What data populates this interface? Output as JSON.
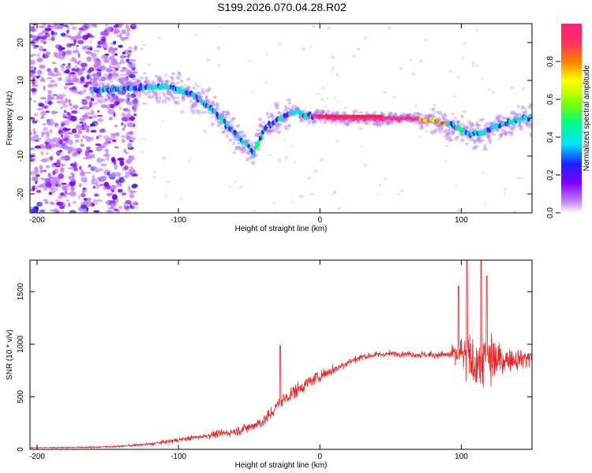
{
  "figure_title": "S199.2026.070.04.28.R02",
  "chart_data": [
    {
      "type": "heatmap",
      "id": "spectrogram",
      "title": "",
      "xlabel": "Height of straight line (km)",
      "ylabel": "Frequency (Hz)",
      "xlim": [
        -205,
        150
      ],
      "ylim": [
        -25,
        25
      ],
      "xticks": [
        -200,
        -100,
        0,
        100
      ],
      "yticks": [
        -20,
        -10,
        0,
        10,
        20
      ],
      "ridge": {
        "x": [
          -205,
          -190,
          -170,
          -150,
          -130,
          -110,
          -95,
          -85,
          -75,
          -65,
          -58,
          -52,
          -47,
          -42,
          -38,
          -33,
          -28,
          -22,
          -17,
          -13,
          -8,
          -3,
          0,
          20,
          45,
          60,
          80,
          95,
          105,
          115,
          125,
          135,
          145,
          150
        ],
        "y": [
          8,
          8,
          7.5,
          7.5,
          8,
          8.5,
          7,
          5,
          2,
          -2,
          -5,
          -7,
          -9,
          -5,
          -2,
          -1,
          0,
          1,
          2,
          1,
          0.5,
          0.5,
          0.5,
          0,
          0,
          0,
          -0.5,
          -2,
          -4,
          -4,
          -2,
          -1,
          0,
          0.5
        ]
      },
      "colorbar": {
        "label": "Normalized spectral amplitude",
        "range": [
          0.0,
          1.0
        ],
        "ticks": [
          0.0,
          0.2,
          0.4,
          0.6,
          0.8
        ],
        "tick_labels": [
          "0.0",
          "0.2",
          "0.4",
          "0.6",
          "0.8"
        ],
        "colors": [
          "#ffffff",
          "#c080ff",
          "#8000ff",
          "#2020ff",
          "#00e0ff",
          "#00ff80",
          "#80ff00",
          "#ffff00",
          "#ff8000",
          "#ff3060",
          "#ff2080"
        ]
      }
    },
    {
      "type": "line",
      "id": "snr",
      "title": "",
      "xlabel": "Height of straight line (km)",
      "ylabel": "SNR (10 * v/v)",
      "xlim": [
        -205,
        150
      ],
      "ylim": [
        0,
        1800
      ],
      "xticks": [
        -200,
        -100,
        0,
        100
      ],
      "yticks": [
        0,
        500,
        1000,
        1500
      ],
      "line_color": "#ee2222",
      "envelope": {
        "x": [
          -205,
          -180,
          -160,
          -140,
          -120,
          -100,
          -80,
          -60,
          -50,
          -40,
          -35,
          -30,
          -25,
          -20,
          -10,
          0,
          10,
          20,
          30,
          40,
          50,
          60,
          70,
          80,
          90,
          95,
          100,
          105,
          110,
          115,
          120,
          125,
          130,
          140,
          150
        ],
        "y": [
          15,
          18,
          20,
          30,
          50,
          90,
          130,
          170,
          210,
          270,
          330,
          420,
          480,
          530,
          620,
          700,
          760,
          830,
          880,
          900,
          910,
          910,
          900,
          900,
          900,
          900,
          900,
          860,
          820,
          850,
          860,
          840,
          850,
          860,
          880
        ]
      },
      "noise": {
        "x": [
          -205,
          -140,
          -80,
          -40,
          -20,
          0,
          40,
          90,
          95,
          100,
          110,
          120,
          130,
          150
        ],
        "y": [
          8,
          15,
          40,
          90,
          110,
          90,
          40,
          50,
          150,
          300,
          400,
          450,
          150,
          150
        ]
      },
      "spikes": [
        {
          "x": -28,
          "y": 990
        },
        {
          "x": 98,
          "y": 1550
        },
        {
          "x": 104,
          "y": 1800
        },
        {
          "x": 114,
          "y": 1800
        },
        {
          "x": 118,
          "y": 1650
        }
      ]
    }
  ]
}
